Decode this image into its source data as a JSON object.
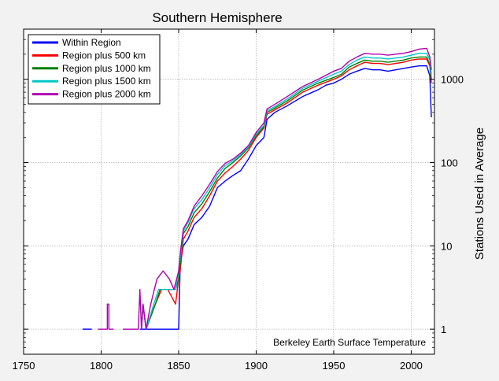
{
  "chart_data": {
    "type": "line",
    "title": "Southern Hemisphere",
    "xlabel": "",
    "ylabel": "Stations Used in Average",
    "annotation": "Berkeley Earth Surface Temperature",
    "xlim": [
      1750,
      2015
    ],
    "ylim": [
      0.5,
      4000
    ],
    "yscale": "log",
    "grid": true,
    "legend_position": "top-left",
    "x_ticks": [
      1750,
      1800,
      1850,
      1900,
      1950,
      2000
    ],
    "x_tick_labels": [
      "1750",
      "1800",
      "1850",
      "1900",
      "1950",
      "2000"
    ],
    "y_ticks": [
      1,
      10,
      100,
      1000
    ],
    "y_tick_labels": [
      "1",
      "10",
      "100",
      "1000"
    ],
    "series": [
      {
        "name": "Within Region",
        "color": "#0000ff",
        "segments": [
          [
            [
              1788,
              1
            ],
            [
              1794,
              1
            ]
          ],
          [
            [
              1825,
              1
            ],
            [
              1849,
              1
            ],
            [
              1849,
              1
            ],
            [
              1850,
              1
            ],
            [
              1851,
              6
            ],
            [
              1853,
              10
            ],
            [
              1856,
              12
            ],
            [
              1860,
              18
            ],
            [
              1865,
              22
            ],
            [
              1870,
              30
            ],
            [
              1875,
              50
            ],
            [
              1880,
              60
            ],
            [
              1885,
              70
            ],
            [
              1890,
              80
            ],
            [
              1895,
              110
            ],
            [
              1900,
              160
            ],
            [
              1905,
              200
            ],
            [
              1907,
              330
            ],
            [
              1912,
              400
            ],
            [
              1920,
              480
            ],
            [
              1930,
              620
            ],
            [
              1940,
              750
            ],
            [
              1945,
              850
            ],
            [
              1950,
              900
            ],
            [
              1955,
              1000
            ],
            [
              1960,
              1150
            ],
            [
              1965,
              1250
            ],
            [
              1970,
              1350
            ],
            [
              1975,
              1300
            ],
            [
              1980,
              1300
            ],
            [
              1985,
              1250
            ],
            [
              1990,
              1300
            ],
            [
              1995,
              1350
            ],
            [
              2000,
              1400
            ],
            [
              2005,
              1450
            ],
            [
              2010,
              1450
            ],
            [
              2012,
              1100
            ],
            [
              2013,
              350
            ]
          ]
        ]
      },
      {
        "name": "Region plus 500 km",
        "color": "#ff0000",
        "segments": [
          [
            [
              1826,
              1
            ],
            [
              1827,
              2
            ],
            [
              1829,
              1
            ],
            [
              1835,
              2
            ],
            [
              1839,
              3
            ],
            [
              1843,
              3
            ],
            [
              1848,
              2
            ],
            [
              1850,
              4
            ],
            [
              1851,
              5
            ],
            [
              1853,
              12
            ],
            [
              1856,
              15
            ],
            [
              1860,
              22
            ],
            [
              1865,
              28
            ],
            [
              1870,
              40
            ],
            [
              1875,
              60
            ],
            [
              1880,
              75
            ],
            [
              1885,
              90
            ],
            [
              1890,
              110
            ],
            [
              1895,
              140
            ],
            [
              1900,
              200
            ],
            [
              1905,
              260
            ],
            [
              1907,
              380
            ],
            [
              1912,
              430
            ],
            [
              1920,
              520
            ],
            [
              1930,
              700
            ],
            [
              1940,
              850
            ],
            [
              1950,
              1000
            ],
            [
              1955,
              1100
            ],
            [
              1960,
              1300
            ],
            [
              1965,
              1450
            ],
            [
              1970,
              1600
            ],
            [
              1975,
              1550
            ],
            [
              1980,
              1550
            ],
            [
              1985,
              1500
            ],
            [
              1990,
              1550
            ],
            [
              1995,
              1600
            ],
            [
              2000,
              1700
            ],
            [
              2005,
              1750
            ],
            [
              2010,
              1750
            ],
            [
              2012,
              1450
            ],
            [
              2013,
              900
            ]
          ]
        ]
      },
      {
        "name": "Region plus 1000 km",
        "color": "#008000",
        "segments": [
          [
            [
              1826,
              1
            ],
            [
              1827,
              2
            ],
            [
              1829,
              1
            ],
            [
              1835,
              2
            ],
            [
              1838,
              3
            ],
            [
              1843,
              3
            ],
            [
              1848,
              3
            ],
            [
              1850,
              4
            ],
            [
              1851,
              6
            ],
            [
              1853,
              14
            ],
            [
              1856,
              17
            ],
            [
              1860,
              25
            ],
            [
              1865,
              32
            ],
            [
              1870,
              45
            ],
            [
              1875,
              65
            ],
            [
              1880,
              85
            ],
            [
              1885,
              100
            ],
            [
              1890,
              120
            ],
            [
              1895,
              150
            ],
            [
              1900,
              210
            ],
            [
              1905,
              270
            ],
            [
              1907,
              400
            ],
            [
              1912,
              450
            ],
            [
              1920,
              550
            ],
            [
              1930,
              740
            ],
            [
              1940,
              900
            ],
            [
              1950,
              1050
            ],
            [
              1955,
              1150
            ],
            [
              1960,
              1400
            ],
            [
              1965,
              1550
            ],
            [
              1970,
              1700
            ],
            [
              1975,
              1650
            ],
            [
              1980,
              1650
            ],
            [
              1985,
              1600
            ],
            [
              1990,
              1650
            ],
            [
              1995,
              1700
            ],
            [
              2000,
              1800
            ],
            [
              2005,
              1850
            ],
            [
              2010,
              1850
            ],
            [
              2012,
              1500
            ],
            [
              2013,
              1000
            ]
          ]
        ]
      },
      {
        "name": "Region plus 1500 km",
        "color": "#00c8c8",
        "segments": [
          [
            [
              1826,
              1
            ],
            [
              1827,
              2
            ],
            [
              1829,
              1
            ],
            [
              1834,
              2
            ],
            [
              1837,
              3
            ],
            [
              1842,
              3
            ],
            [
              1848,
              3
            ],
            [
              1850,
              5
            ],
            [
              1851,
              7
            ],
            [
              1853,
              15
            ],
            [
              1856,
              19
            ],
            [
              1860,
              28
            ],
            [
              1865,
              36
            ],
            [
              1870,
              50
            ],
            [
              1875,
              72
            ],
            [
              1880,
              92
            ],
            [
              1885,
              105
            ],
            [
              1890,
              125
            ],
            [
              1895,
              155
            ],
            [
              1900,
              220
            ],
            [
              1905,
              280
            ],
            [
              1907,
              420
            ],
            [
              1912,
              470
            ],
            [
              1920,
              580
            ],
            [
              1930,
              780
            ],
            [
              1940,
              950
            ],
            [
              1950,
              1150
            ],
            [
              1955,
              1250
            ],
            [
              1960,
              1500
            ],
            [
              1965,
              1700
            ],
            [
              1970,
              1850
            ],
            [
              1975,
              1800
            ],
            [
              1980,
              1800
            ],
            [
              1985,
              1750
            ],
            [
              1990,
              1800
            ],
            [
              1995,
              1850
            ],
            [
              2000,
              1950
            ],
            [
              2005,
              2050
            ],
            [
              2010,
              2050
            ],
            [
              2012,
              1700
            ],
            [
              2013,
              1150
            ]
          ]
        ]
      },
      {
        "name": "Region plus 2000 km",
        "color": "#b000b0",
        "segments": [
          [
            [
              1798,
              1
            ],
            [
              1804,
              1
            ],
            [
              1804,
              2
            ],
            [
              1805,
              2
            ],
            [
              1805,
              1
            ],
            [
              1808,
              1
            ]
          ],
          [
            [
              1814,
              1
            ],
            [
              1824,
              1
            ],
            [
              1825,
              3
            ],
            [
              1826,
              1
            ],
            [
              1827,
              2
            ],
            [
              1829,
              1
            ],
            [
              1832,
              2
            ],
            [
              1836,
              4
            ],
            [
              1840,
              5
            ],
            [
              1844,
              4
            ],
            [
              1847,
              3
            ],
            [
              1850,
              5
            ],
            [
              1851,
              8
            ],
            [
              1853,
              16
            ],
            [
              1856,
              20
            ],
            [
              1860,
              30
            ],
            [
              1865,
              40
            ],
            [
              1870,
              55
            ],
            [
              1875,
              78
            ],
            [
              1880,
              98
            ],
            [
              1885,
              110
            ],
            [
              1890,
              130
            ],
            [
              1895,
              160
            ],
            [
              1900,
              230
            ],
            [
              1905,
              300
            ],
            [
              1907,
              440
            ],
            [
              1912,
              500
            ],
            [
              1920,
              620
            ],
            [
              1930,
              820
            ],
            [
              1940,
              1000
            ],
            [
              1950,
              1250
            ],
            [
              1955,
              1350
            ],
            [
              1960,
              1650
            ],
            [
              1965,
              1850
            ],
            [
              1970,
              2050
            ],
            [
              1975,
              2000
            ],
            [
              1980,
              2000
            ],
            [
              1985,
              1950
            ],
            [
              1990,
              2000
            ],
            [
              1995,
              2050
            ],
            [
              2000,
              2150
            ],
            [
              2005,
              2300
            ],
            [
              2010,
              2350
            ],
            [
              2012,
              1850
            ],
            [
              2013,
              1300
            ]
          ]
        ]
      }
    ]
  }
}
